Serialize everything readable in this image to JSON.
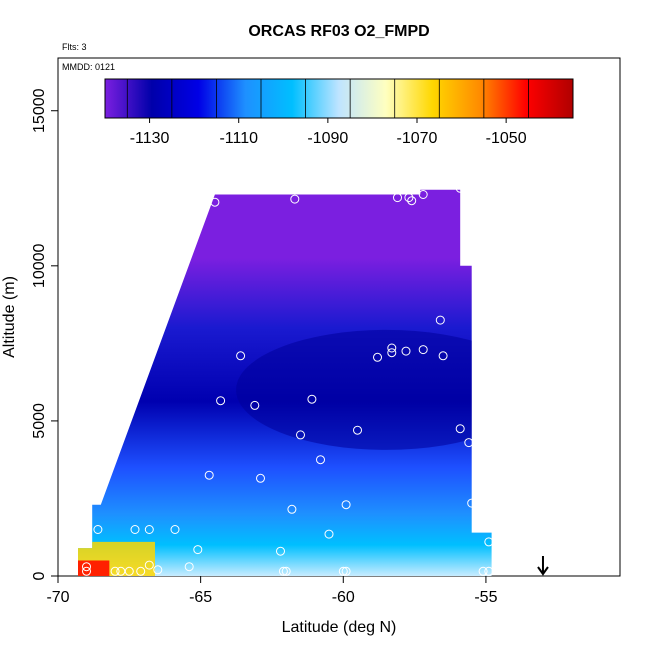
{
  "chart_data": {
    "type": "heatmap",
    "title": "ORCAS RF03 O2_FMPD",
    "annotations": [
      "Flts: 3",
      "MMDD: 0121"
    ],
    "xlabel": "Latitude (deg N)",
    "ylabel": "Altitude (m)",
    "xlim": [
      -70,
      -50.3
    ],
    "ylim": [
      0,
      16700
    ],
    "x_ticks": [
      -70,
      -65,
      -60,
      -55
    ],
    "x_tick_labels": [
      "-70",
      "-65",
      "-60",
      "-55"
    ],
    "y_ticks": [
      0,
      5000,
      10000,
      15000
    ],
    "y_tick_labels": [
      "0",
      "5000",
      "10000",
      "15000"
    ],
    "colorbar": {
      "range": [
        -1140,
        -1035
      ],
      "ticks": [
        -1130,
        -1110,
        -1090,
        -1070,
        -1050
      ],
      "tick_labels": [
        "-1130",
        "-1110",
        "-1090",
        "-1070",
        "-1050"
      ],
      "colors": [
        "#7b1fe0",
        "#0000aa",
        "#0000e6",
        "#1e90ff",
        "#00bfff",
        "#bfe4ff",
        "#ffffc0",
        "#ffd700",
        "#ff8c00",
        "#ff0000",
        "#b00000"
      ]
    },
    "field_colors": {
      "top": "#7b1fe0",
      "upper": "#1a1ad0",
      "mid": "#0000b0",
      "lower_mid": "#1e50ff",
      "lower": "#1e90ff",
      "near_surface": "#00bfff",
      "surface_light": "#c8ecff",
      "surface_warm": "#ffd700",
      "surface_hot": "#ff2000"
    },
    "arrow_latitude": -53,
    "sample_points": [
      {
        "x": -64.5,
        "y": 12050
      },
      {
        "x": -61.7,
        "y": 12150
      },
      {
        "x": -58.1,
        "y": 12200
      },
      {
        "x": -57.7,
        "y": 12200
      },
      {
        "x": -57.6,
        "y": 12100
      },
      {
        "x": -57.2,
        "y": 12300
      },
      {
        "x": -55.9,
        "y": 12500
      },
      {
        "x": -56.6,
        "y": 8250
      },
      {
        "x": -63.6,
        "y": 7100
      },
      {
        "x": -58.8,
        "y": 7050
      },
      {
        "x": -58.3,
        "y": 7350
      },
      {
        "x": -58.3,
        "y": 7200
      },
      {
        "x": -57.8,
        "y": 7250
      },
      {
        "x": -57.2,
        "y": 7300
      },
      {
        "x": -56.5,
        "y": 7100
      },
      {
        "x": -64.3,
        "y": 5650
      },
      {
        "x": -63.1,
        "y": 5500
      },
      {
        "x": -61.1,
        "y": 5700
      },
      {
        "x": -61.5,
        "y": 4550
      },
      {
        "x": -59.5,
        "y": 4700
      },
      {
        "x": -55.9,
        "y": 4750
      },
      {
        "x": -55.6,
        "y": 4300
      },
      {
        "x": -60.8,
        "y": 3750
      },
      {
        "x": -64.7,
        "y": 3250
      },
      {
        "x": -62.9,
        "y": 3150
      },
      {
        "x": -61.8,
        "y": 2150
      },
      {
        "x": -59.9,
        "y": 2300
      },
      {
        "x": -55.5,
        "y": 2350
      },
      {
        "x": -68.6,
        "y": 1500
      },
      {
        "x": -67.3,
        "y": 1500
      },
      {
        "x": -66.8,
        "y": 1500
      },
      {
        "x": -65.9,
        "y": 1500
      },
      {
        "x": -60.5,
        "y": 1350
      },
      {
        "x": -54.9,
        "y": 1100
      },
      {
        "x": -65.1,
        "y": 850
      },
      {
        "x": -62.2,
        "y": 800
      },
      {
        "x": -66.8,
        "y": 350
      },
      {
        "x": -65.4,
        "y": 300
      },
      {
        "x": -67.1,
        "y": 150
      },
      {
        "x": -69.0,
        "y": 300
      },
      {
        "x": -68.0,
        "y": 150
      },
      {
        "x": -69.0,
        "y": 150
      },
      {
        "x": -67.8,
        "y": 150
      },
      {
        "x": -67.5,
        "y": 150
      },
      {
        "x": -66.5,
        "y": 200
      },
      {
        "x": -62.1,
        "y": 150
      },
      {
        "x": -62.0,
        "y": 150
      },
      {
        "x": -60.0,
        "y": 150
      },
      {
        "x": -59.9,
        "y": 150
      },
      {
        "x": -55.1,
        "y": 150
      },
      {
        "x": -54.9,
        "y": 150
      }
    ]
  }
}
